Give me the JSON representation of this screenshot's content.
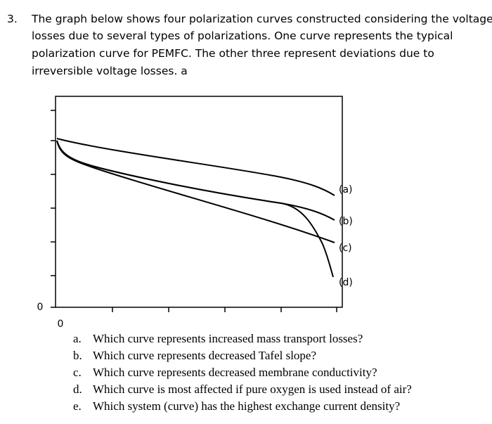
{
  "question": {
    "number": "3.",
    "lines": [
      "The graph below shows four polarization curves constructed considering the voltage",
      "losses due to several types of polarizations. One curve represents the typical",
      "polarization curve for PEMFC.  The other three represent deviations due to",
      "irreversible voltage losses. a"
    ]
  },
  "graph": {
    "y_origin_label": "0",
    "x_origin_label": "0",
    "curve_labels": [
      "(a)",
      "(b)",
      "(c)",
      "(d)"
    ]
  },
  "subquestions": [
    {
      "marker": "a.",
      "text": "Which curve represents increased mass transport losses?"
    },
    {
      "marker": "b.",
      "text": "Which curve represents decreased Tafel slope?"
    },
    {
      "marker": "c.",
      "text": "Which curve represents decreased membrane conductivity?"
    },
    {
      "marker": "d.",
      "text": "Which curve is most affected if pure oxygen is used instead of air?"
    },
    {
      "marker": "e.",
      "text": "Which system (curve) has the highest exchange current density?"
    }
  ]
}
